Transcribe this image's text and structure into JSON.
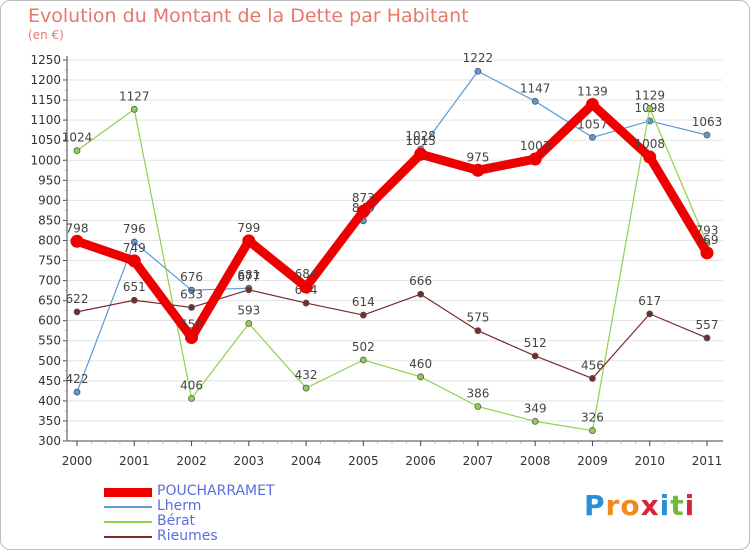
{
  "header": {
    "title": "Evolution du Montant de la Dette par Habitant",
    "unit": "(en €)"
  },
  "logo": {
    "text": "Proxiti",
    "letters": [
      "P",
      "r",
      "o",
      "x",
      "i",
      "t",
      "i"
    ],
    "letter_colors": [
      "#2a8fd6",
      "#f08a1c",
      "#f08a1c",
      "#d6263b",
      "#2a8fd6",
      "#72b83a",
      "#d6263b"
    ]
  },
  "chart_data": {
    "type": "line",
    "x": [
      "2000",
      "2001",
      "2002",
      "2003",
      "2004",
      "2005",
      "2006",
      "2007",
      "2008",
      "2009",
      "2010",
      "2011"
    ],
    "ylim": [
      300,
      1250
    ],
    "yticks": [
      300,
      350,
      400,
      450,
      500,
      550,
      600,
      650,
      700,
      750,
      800,
      850,
      900,
      950,
      1000,
      1050,
      1100,
      1150,
      1200,
      1250
    ],
    "grid": true,
    "legend_position": "bottom-left",
    "series": [
      {
        "name": "POUCHARRAMET",
        "color": "#ee0000",
        "values": [
          798,
          749,
          558,
          799,
          684,
          873,
          1015,
          975,
          1003,
          1139,
          1008,
          769
        ],
        "labels": [
          "798",
          "749",
          "558",
          "799",
          "684",
          "873",
          "1015",
          "975",
          "1003",
          "1139",
          "1008",
          "769"
        ]
      },
      {
        "name": "Lherm",
        "color": "#5b9bd5",
        "values": [
          422,
          796,
          676,
          681,
          null,
          849,
          1028,
          1222,
          1147,
          1057,
          1098,
          1063
        ],
        "labels": [
          "422",
          "796",
          "676",
          "681",
          "",
          "849",
          "1028",
          "1222",
          "1147",
          "1057",
          "1098",
          "1063"
        ]
      },
      {
        "name": "Bérat",
        "color": "#8fd14f",
        "values": [
          1024,
          1127,
          406,
          593,
          432,
          502,
          460,
          386,
          349,
          326,
          1129,
          793
        ],
        "labels": [
          "1024",
          "1127",
          "406",
          "593",
          "432",
          "502",
          "460",
          "386",
          "349",
          "326",
          "1129",
          "793"
        ]
      },
      {
        "name": "Rieumes",
        "color": "#7a2a2a",
        "values": [
          622,
          651,
          633,
          677,
          644,
          614,
          666,
          575,
          512,
          456,
          617,
          557
        ],
        "labels": [
          "622",
          "651",
          "633",
          "677",
          "644",
          "614",
          "666",
          "575",
          "512",
          "456",
          "617",
          "557"
        ]
      }
    ]
  }
}
